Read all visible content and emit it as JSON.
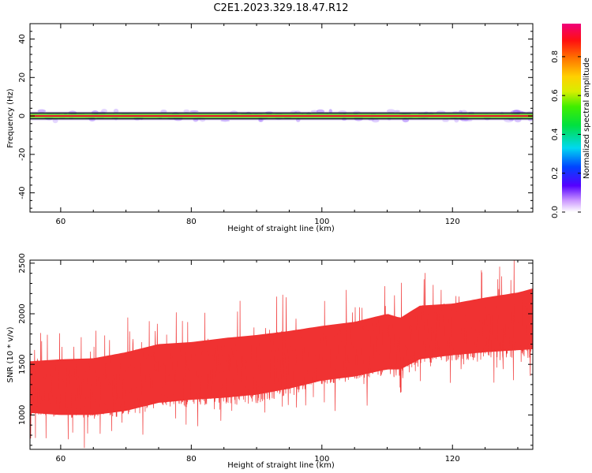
{
  "title": "C2E1.2023.329.18.47.R12",
  "colors": {
    "snr_line": "#f03232",
    "center_line": "#e0004a",
    "halo_green": "#14d214",
    "band_edge": "#000000",
    "speckle": "#a070ff"
  },
  "chart_data": [
    {
      "type": "heatmap",
      "title": "",
      "xlabel": "Height of straight line (km)",
      "ylabel": "Frequency (Hz)",
      "xlim": [
        55.3,
        132.3
      ],
      "ylim": [
        -50,
        48
      ],
      "xticks": [
        60,
        80,
        100,
        120
      ],
      "yticks": [
        -40,
        -20,
        0,
        20,
        40
      ],
      "ytick_labels": [
        "-40",
        "-20",
        "0",
        "20",
        "40"
      ],
      "band_center_hz": 0,
      "band_halfwidth_hz": 1.5,
      "peak_spectral_amplitude": 1.0,
      "colorbar": {
        "label": "Normalized spectral amplitude",
        "range": [
          0.0,
          0.97
        ],
        "ticks": [
          0.0,
          0.2,
          0.4,
          0.6,
          0.8
        ],
        "tick_labels": [
          "0.0",
          "0.2",
          "0.4",
          "0.6",
          "0.8"
        ],
        "colormap": "rainbow (white-violet-blue-cyan-green-yellow-orange-red-magenta)"
      },
      "grid": false
    },
    {
      "type": "line",
      "title": "",
      "xlabel": "Height of straight line (km)",
      "ylabel": "SNR (10 * v/v)",
      "xlim": [
        55.3,
        132.3
      ],
      "ylim": [
        660,
        2530
      ],
      "xticks": [
        60,
        80,
        100,
        120
      ],
      "yticks": [
        1000,
        1500,
        2000,
        2500
      ],
      "ytick_labels": [
        "1000",
        "1500",
        "2000",
        "2500"
      ],
      "series": [
        {
          "trend_x": [
            55.3,
            60,
            65,
            70,
            75,
            80,
            85,
            90,
            95,
            100,
            105,
            110,
            112,
            115,
            120,
            125,
            130,
            132.3
          ],
          "trend_mean": [
            1270,
            1260,
            1250,
            1290,
            1360,
            1380,
            1400,
            1420,
            1480,
            1570,
            1620,
            1680,
            1610,
            1770,
            1800,
            1830,
            1860,
            1870
          ],
          "envelope_low": [
            1020,
            1000,
            1000,
            1040,
            1120,
            1150,
            1170,
            1200,
            1260,
            1340,
            1380,
            1450,
            1450,
            1550,
            1590,
            1620,
            1640,
            1650
          ],
          "envelope_high": [
            1530,
            1550,
            1560,
            1620,
            1700,
            1720,
            1760,
            1790,
            1830,
            1880,
            1920,
            2000,
            1960,
            2080,
            2100,
            2160,
            2210,
            2250
          ]
        }
      ],
      "grid": false
    }
  ]
}
